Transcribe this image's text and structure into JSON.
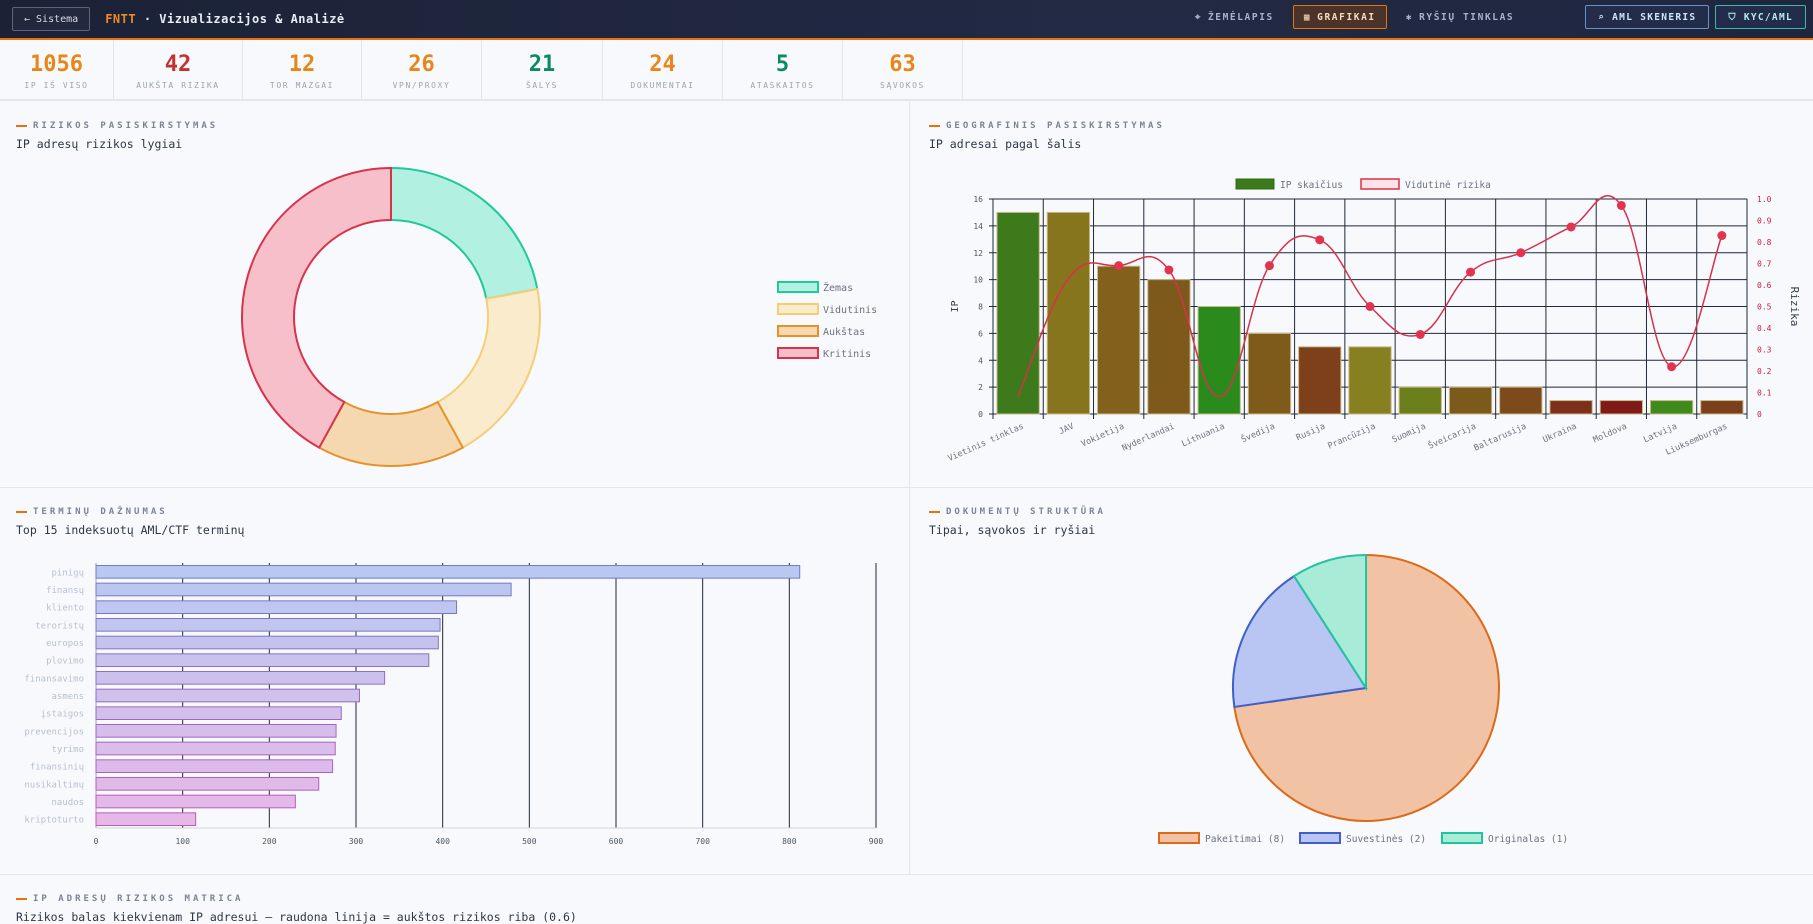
{
  "header": {
    "back_label": "← Sistema",
    "brand_prefix": "FNTT",
    "brand_title": " · Vizualizacijos & Analizė",
    "nav": [
      {
        "icon": "⌖",
        "label": "ŽEMĖLAPIS"
      },
      {
        "icon": "▦",
        "label": "GRAFIKAI"
      },
      {
        "icon": "✱",
        "label": "RYŠIŲ TINKLAS"
      }
    ],
    "aml_label": "⌕ AML SKENERIS",
    "kyc_label": "⛉ KYC/AML"
  },
  "stats": [
    {
      "value": "1056",
      "label": "IP IŠ VISO",
      "color": "#e8861a"
    },
    {
      "value": "42",
      "label": "AUKŠTA RIZIKA",
      "color": "#c53030"
    },
    {
      "value": "12",
      "label": "TOR MAZGAI",
      "color": "#e8861a"
    },
    {
      "value": "26",
      "label": "VPN/PROXY",
      "color": "#e8861a"
    },
    {
      "value": "21",
      "label": "ŠALYS",
      "color": "#0f8a5f"
    },
    {
      "value": "24",
      "label": "DOKUMENTAI",
      "color": "#e8861a"
    },
    {
      "value": "5",
      "label": "ATASKAITOS",
      "color": "#0f8a5f"
    },
    {
      "value": "63",
      "label": "SĄVOKOS",
      "color": "#e8861a"
    }
  ],
  "panels": {
    "risk": {
      "kicker": "RIZIKOS PASISKIRSTYMAS",
      "subtitle": "IP adresų rizikos lygiai"
    },
    "geo": {
      "kicker": "GEOGRAFINIS PASISKIRSTYMAS",
      "subtitle": "IP adresai pagal šalis"
    },
    "terms": {
      "kicker": "TERMINŲ DAŽNUMAS",
      "subtitle": "Top 15 indeksuotų AML/CTF terminų"
    },
    "docs": {
      "kicker": "DOKUMENTŲ STRUKTŪRA",
      "subtitle": "Tipai, sąvokos ir ryšiai"
    },
    "matrix": {
      "kicker": "IP ADRESŲ RIZIKOS MATRICA",
      "subtitle": "Rizikos balas kiekvienam IP adresui — raudona linija = aukštos rizikos riba (0.6)"
    }
  },
  "chart_data": [
    {
      "type": "pie",
      "donut": true,
      "labels": [
        "Žemas",
        "Vidutinis",
        "Aukštas",
        "Kritinis"
      ],
      "values": [
        22,
        20,
        16,
        42
      ],
      "fill_colors": [
        "#b2f0e2",
        "#faebcd",
        "#f6d8b0",
        "#f7bfc9"
      ],
      "stroke_colors": [
        "#1fc99a",
        "#f5cd75",
        "#e6922a",
        "#d8334a"
      ],
      "legend": "right"
    },
    {
      "type": "bar",
      "categories": [
        "Vietinis tinklas",
        "JAV",
        "Vokietija",
        "Nyderlandai",
        "Lithuania",
        "Švedija",
        "Rusija",
        "Prancūzija",
        "Suomija",
        "Šveicarija",
        "Baltarusija",
        "Ukraina",
        "Moldova",
        "Latvija",
        "Liuksemburgas"
      ],
      "series": [
        {
          "name": "IP skaičius",
          "type": "bar",
          "axis": "left",
          "values": [
            15,
            15,
            11,
            10,
            8,
            6,
            5,
            5,
            2,
            2,
            2,
            1,
            1,
            1,
            1
          ]
        },
        {
          "name": "Vidutinė rizika",
          "type": "line",
          "axis": "right",
          "values": [
            0.08,
            0.63,
            0.69,
            0.67,
            0.08,
            0.69,
            0.81,
            0.5,
            0.37,
            0.66,
            0.75,
            0.87,
            0.97,
            0.22,
            0.83
          ]
        }
      ],
      "bar_colors": [
        "#3c7a1c",
        "#86751c",
        "#81611c",
        "#7d5a1b",
        "#2b8a1c",
        "#7e5a1b",
        "#7e401b",
        "#878020",
        "#6b7f1c",
        "#7c5a1b",
        "#7c4a1b",
        "#7d2f1b",
        "#7f1a17",
        "#3f8a1c",
        "#7c3f1b"
      ],
      "ylabel": "IP",
      "y2label": "Rizika",
      "ylim": [
        0,
        16
      ],
      "y2lim": [
        0,
        1
      ],
      "yticks": [
        0,
        2,
        4,
        6,
        8,
        10,
        12,
        14,
        16
      ],
      "y2ticks": [
        "0",
        "0.1",
        "0.2",
        "0.3",
        "0.4",
        "0.5",
        "0.6",
        "0.7",
        "0.8",
        "0.9",
        "1.0"
      ],
      "grid": true,
      "legend": "top-center"
    },
    {
      "type": "bar",
      "orientation": "horizontal",
      "categories": [
        "pinigų",
        "finansų",
        "kliento",
        "teroristų",
        "europos",
        "plovimo",
        "finansavimo",
        "asmens",
        "įstaigos",
        "prevencijos",
        "tyrimo",
        "finansinių",
        "nusikaltimų",
        "naudos",
        "kriptoturto"
      ],
      "values": [
        812,
        479,
        416,
        397,
        395,
        384,
        333,
        304,
        283,
        277,
        276,
        273,
        257,
        230,
        115
      ],
      "xlim": [
        0,
        900
      ],
      "xticks": [
        0,
        100,
        200,
        300,
        400,
        500,
        600,
        700,
        800,
        900
      ],
      "grid": true
    },
    {
      "type": "pie",
      "labels": [
        "Pakeitimai (8)",
        "Suvestinės (2)",
        "Originalas (1)"
      ],
      "values": [
        8,
        2,
        1
      ],
      "fill_colors": [
        "#f1c2a4",
        "#b9c5f3",
        "#a8ecd8"
      ],
      "stroke_colors": [
        "#dc6a17",
        "#3f5fc9",
        "#22c3a0"
      ],
      "legend": "bottom"
    }
  ]
}
